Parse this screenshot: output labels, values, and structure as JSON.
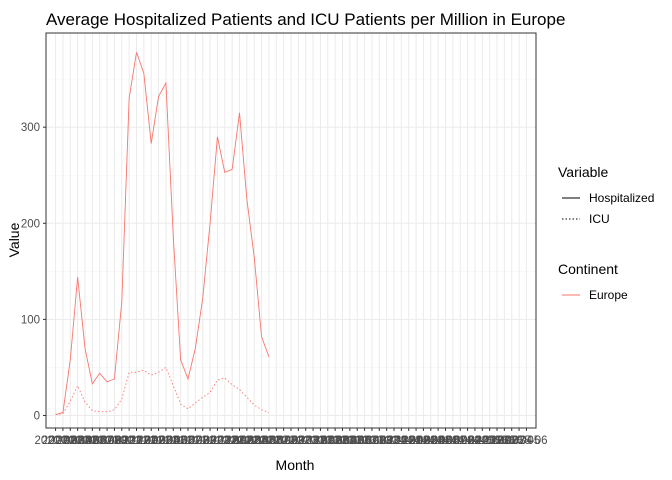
{
  "chart_data": {
    "type": "line",
    "title": "Average Hospitalized Patients and ICU Patients per Million in Europe",
    "xlabel": "Month",
    "ylabel": "Value",
    "ylim": [
      -13,
      398
    ],
    "y_ticks": [
      0,
      100,
      200,
      300
    ],
    "x_tick_labels": [
      "2020-02",
      "2020-03",
      "2020-04",
      "2020-05",
      "2020-06",
      "2020-07",
      "2020-08",
      "2020-09",
      "2020-10",
      "2020-11",
      "2020-12",
      "2021-01",
      "2021-02",
      "2021-03",
      "2021-04",
      "2021-05",
      "2021-06",
      "2021-07",
      "2021-08",
      "2021-09",
      "2021-10",
      "2021-11",
      "2021-12",
      "2022-01",
      "2022-02",
      "2022-03",
      "2022-04",
      "2022-05",
      "2022-06",
      "2022-07",
      "2022-08",
      "2022-09",
      "2022-10",
      "2022-11",
      "2022-12",
      "2023-01",
      "2023-02",
      "2023-03",
      "2023-04",
      "2023-05",
      "2023-06",
      "2023-07",
      "2023-08",
      "2023-09",
      "2023-10",
      "2023-11",
      "2023-12",
      "2024-01",
      "2024-02",
      "2024-03",
      "2024-04",
      "2024-05",
      "2024-06",
      "2024-07",
      "2024-08",
      "2024-09",
      "2024-10",
      "2024-11",
      "2024-12",
      "2025-01",
      "2025-02",
      "2025-03",
      "2025-04",
      "2025-05",
      "2025-06"
    ],
    "x": [
      "2020-02",
      "2020-03",
      "2020-04",
      "2020-05",
      "2020-06",
      "2020-07",
      "2020-08",
      "2020-09",
      "2020-10",
      "2020-11",
      "2020-12",
      "2021-01",
      "2021-02",
      "2021-03",
      "2021-04",
      "2021-05",
      "2021-06",
      "2021-07",
      "2021-08",
      "2021-09",
      "2021-10",
      "2021-11",
      "2021-12",
      "2022-01",
      "2022-02",
      "2022-03",
      "2022-04",
      "2022-05",
      "2022-06",
      "2022-07",
      "2022-08",
      "2022-09"
    ],
    "series": [
      {
        "name": "Hospitalized",
        "continent": "Europe",
        "linetype": "solid",
        "values": [
          1,
          3,
          58,
          144,
          70,
          33,
          44,
          35,
          38,
          118,
          330,
          378,
          356,
          283,
          332,
          346,
          186,
          58,
          38,
          70,
          122,
          200,
          290,
          253,
          256,
          315,
          225,
          165,
          82,
          61,
          null,
          null
        ]
      },
      {
        "name": "ICU",
        "continent": "Europe",
        "linetype": "dotted",
        "values": [
          1,
          2,
          15,
          31,
          14,
          5,
          4,
          4,
          6,
          17,
          45,
          45,
          47,
          42,
          45,
          50,
          31,
          12,
          7,
          13,
          19,
          24,
          37,
          39,
          32,
          27,
          19,
          11,
          6,
          3,
          null,
          null
        ]
      }
    ],
    "grid": true,
    "legend": {
      "placement": "right",
      "variable_title": "Variable",
      "variable_items": [
        "Hospitalized",
        "ICU"
      ],
      "continent_title": "Continent",
      "continent_items": [
        "Europe"
      ]
    },
    "colors": {
      "europe_line": "#f8766d",
      "legend_key_line": "#000000",
      "grid": "#ebebeb",
      "panel_border": "#333333"
    }
  }
}
